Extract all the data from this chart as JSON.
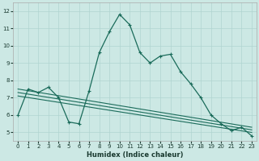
{
  "xlabel": "Humidex (Indice chaleur)",
  "xlim": [
    -0.5,
    23.5
  ],
  "ylim": [
    4.5,
    12.5
  ],
  "xticks": [
    0,
    1,
    2,
    3,
    4,
    5,
    6,
    7,
    8,
    9,
    10,
    11,
    12,
    13,
    14,
    15,
    16,
    17,
    18,
    19,
    20,
    21,
    22,
    23
  ],
  "yticks": [
    5,
    6,
    7,
    8,
    9,
    10,
    11,
    12
  ],
  "bg_color": "#cce8e4",
  "grid_color": "#b0d4d0",
  "line_color": "#1a6b5a",
  "series_main": [
    6.0,
    7.5,
    7.3,
    7.6,
    7.0,
    5.6,
    5.5,
    7.4,
    9.6,
    10.8,
    11.8,
    11.2,
    9.6,
    9.0,
    9.4,
    9.5,
    8.5,
    7.8,
    7.0,
    6.0,
    5.5,
    5.1,
    5.3,
    4.8
  ],
  "series_linear1": [
    [
      0,
      7.3
    ],
    [
      23,
      5.15
    ]
  ],
  "series_linear2": [
    [
      0,
      7.1
    ],
    [
      23,
      5.0
    ]
  ],
  "series_linear3": [
    [
      0,
      7.5
    ],
    [
      23,
      5.3
    ]
  ]
}
